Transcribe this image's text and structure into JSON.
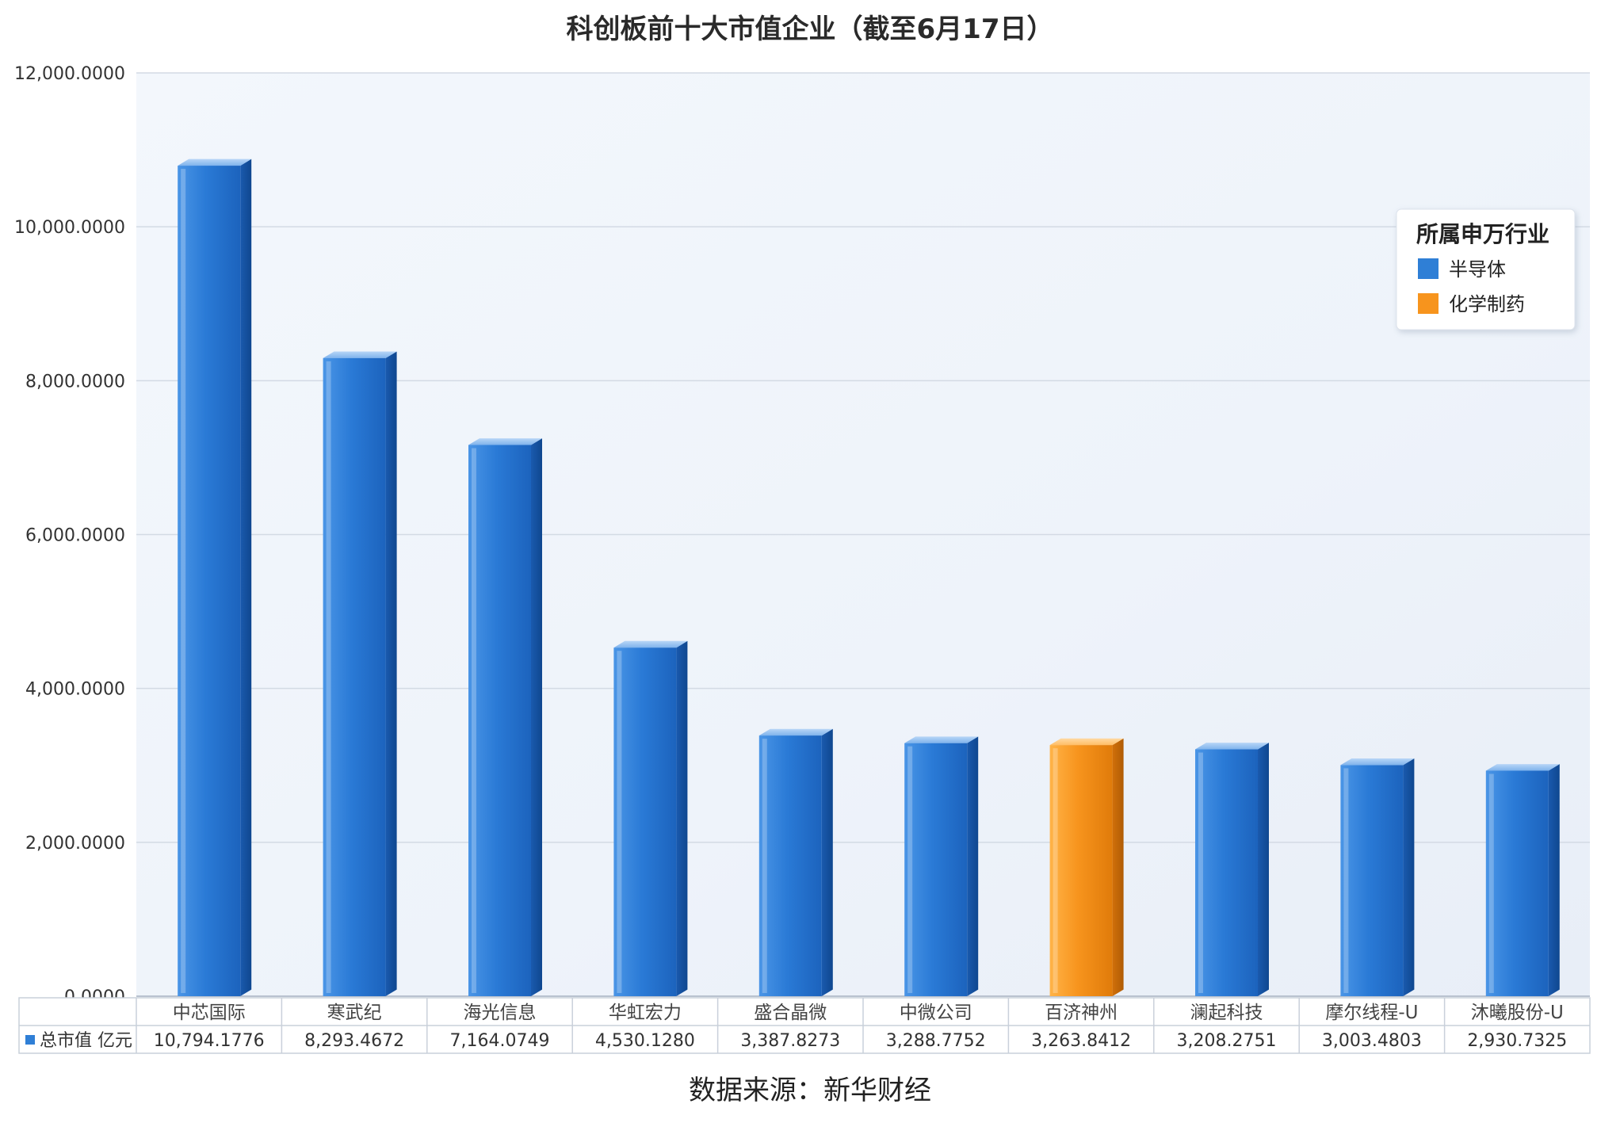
{
  "chart_data": {
    "type": "bar",
    "title": "科创板前十大市值企业（截至6月17日）",
    "categories": [
      "中芯国际",
      "寒武纪",
      "海光信息",
      "华虹宏力",
      "盛合晶微",
      "中微公司",
      "百济神州",
      "澜起科技",
      "摩尔线程-U",
      "沐曦股份-U"
    ],
    "series": [
      {
        "name": "总市值 亿元",
        "values": [
          10794.1776,
          8293.4672,
          7164.0749,
          4530.128,
          3387.8273,
          3288.7752,
          3263.8412,
          3208.2751,
          3003.4803,
          2930.7325
        ],
        "labels": [
          "10,794.1776",
          "8,293.4672",
          "7,164.0749",
          "4,530.1280",
          "3,387.8273",
          "3,288.7752",
          "3,263.8412",
          "3,208.2751",
          "3,003.4803",
          "2,930.7325"
        ],
        "industries": [
          "半导体",
          "半导体",
          "半导体",
          "半导体",
          "半导体",
          "半导体",
          "化学制药",
          "半导体",
          "半导体",
          "半导体"
        ]
      }
    ],
    "ylim": [
      0,
      12000
    ],
    "yticks": [
      "0.0000",
      "2,000.0000",
      "4,000.0000",
      "6,000.0000",
      "8,000.0000",
      "10,000.0000",
      "12,000.0000"
    ],
    "ytick_values": [
      0,
      2000,
      4000,
      6000,
      8000,
      10000,
      12000
    ],
    "grid": true,
    "legend": {
      "title": "所属申万行业",
      "placement": "top-right",
      "items": [
        {
          "label": "半导体",
          "color": "#2f7fd6"
        },
        {
          "label": "化学制药",
          "color": "#f7941d"
        }
      ]
    },
    "table_row_label": "总市值 亿元",
    "source": "数据来源：新华财经"
  }
}
